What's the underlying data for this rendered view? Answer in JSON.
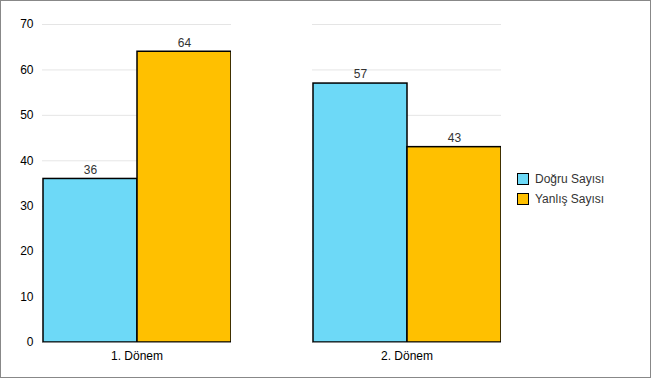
{
  "chart_data": {
    "type": "bar",
    "categories": [
      "1. Dönem",
      "2. Dönem"
    ],
    "series": [
      {
        "name": "Doğru Sayısı",
        "color": "#6dd9f7",
        "values": [
          36,
          57
        ]
      },
      {
        "name": "Yanlış Sayısı",
        "color": "#ffc000",
        "values": [
          64,
          43
        ]
      }
    ],
    "ylim": [
      0,
      70
    ],
    "yticks": [
      0,
      10,
      20,
      30,
      40,
      50,
      60,
      70
    ],
    "grid": true,
    "data_labels": true,
    "legend": "right"
  }
}
